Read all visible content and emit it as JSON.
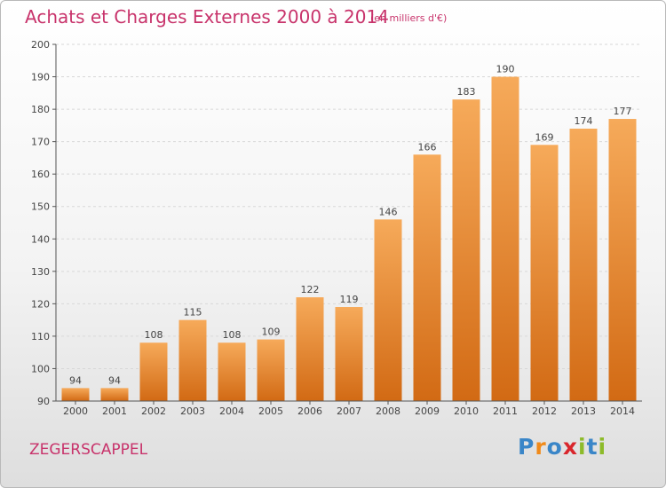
{
  "title": "Achats et Charges Externes 2000 à 2014",
  "subtitle": "(en milliers d'€)",
  "commune": "ZEGERSCAPPEL",
  "logo": {
    "text": "Proxiti",
    "letters": [
      "P",
      "r",
      "o",
      "x",
      "i",
      "t",
      "i"
    ],
    "colors": [
      "#3a86c8",
      "#f08a1a",
      "#3a86c8",
      "#d9262c",
      "#8dbb2a",
      "#3a86c8",
      "#8dbb2a"
    ]
  },
  "colors": {
    "title": "#c8336b",
    "bar_top": "#f6aa5a",
    "bar_bottom": "#d26a14",
    "axis": "#555555",
    "grid": "#d8d8d8"
  },
  "chart_data": {
    "type": "bar",
    "categories": [
      "2000",
      "2001",
      "2002",
      "2003",
      "2004",
      "2005",
      "2006",
      "2007",
      "2008",
      "2009",
      "2010",
      "2011",
      "2012",
      "2013",
      "2014"
    ],
    "values": [
      94,
      94,
      108,
      115,
      108,
      109,
      122,
      119,
      146,
      166,
      183,
      190,
      169,
      174,
      177
    ],
    "ylim": [
      90,
      200
    ],
    "yticks": [
      90,
      100,
      110,
      120,
      130,
      140,
      150,
      160,
      170,
      180,
      190,
      200
    ],
    "xlabel": "",
    "ylabel": "",
    "grid": "horizontal dashed",
    "data_labels": true
  }
}
